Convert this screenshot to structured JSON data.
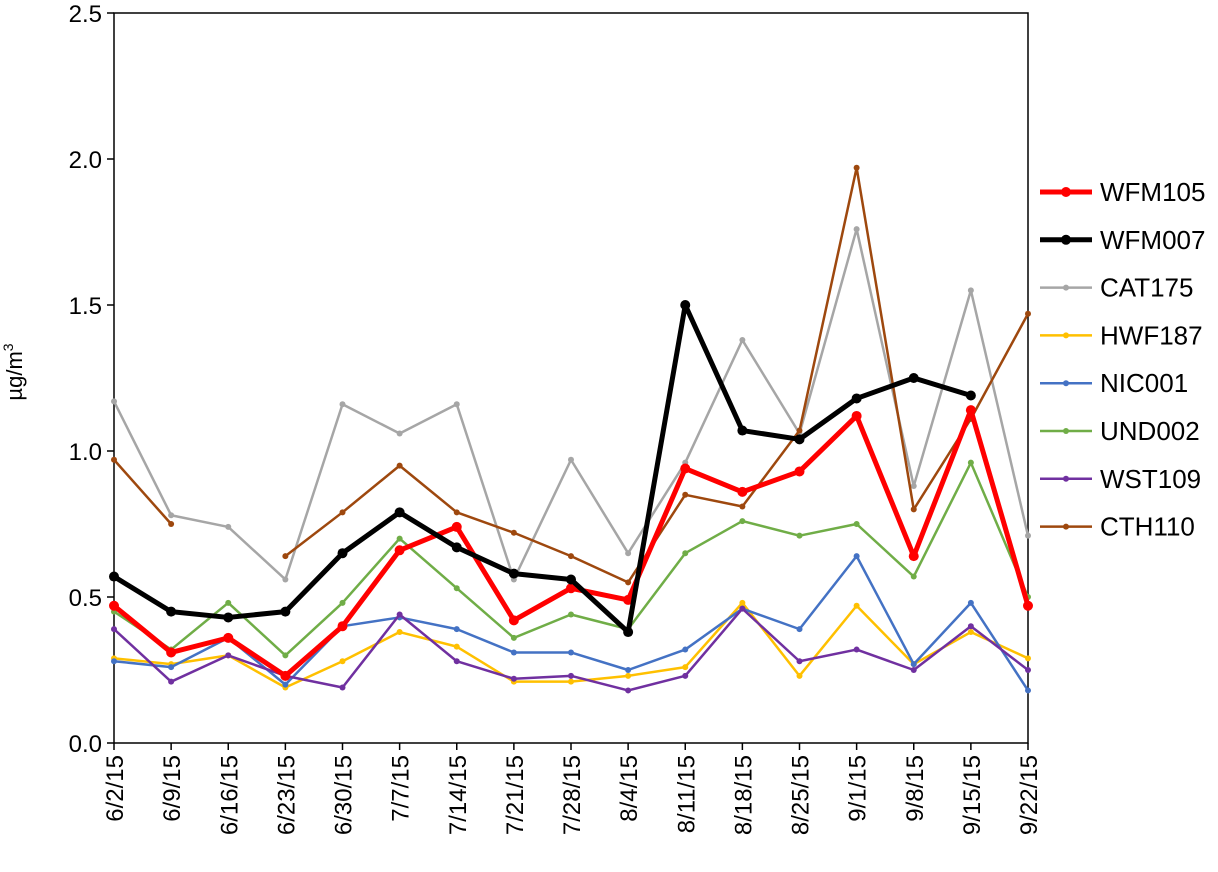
{
  "chart_data": {
    "type": "line",
    "title": "",
    "xlabel": "",
    "ylabel": "µg/m",
    "ylabel_superscript": "3",
    "ylim": [
      0,
      2.5
    ],
    "yticks": [
      0.0,
      0.5,
      1.0,
      1.5,
      2.0,
      2.5
    ],
    "ytick_labels": [
      "0.0",
      "0.5",
      "1.0",
      "1.5",
      "2.0",
      "2.5"
    ],
    "categories": [
      "6/2/15",
      "6/9/15",
      "6/16/15",
      "6/23/15",
      "6/30/15",
      "7/7/15",
      "7/14/15",
      "7/21/15",
      "7/28/15",
      "8/4/15",
      "8/11/15",
      "8/18/15",
      "8/25/15",
      "9/1/15",
      "9/8/15",
      "9/15/15",
      "9/22/15"
    ],
    "legend_position": "right",
    "grid": false,
    "series": [
      {
        "name": "WFM105",
        "color": "#ff0000",
        "width": 5,
        "marker": 5,
        "values": [
          0.47,
          0.31,
          0.36,
          0.23,
          0.4,
          0.66,
          0.74,
          0.42,
          0.53,
          0.49,
          0.94,
          0.86,
          0.93,
          1.12,
          0.64,
          1.14,
          0.47
        ]
      },
      {
        "name": "WFM007",
        "color": "#000000",
        "width": 5,
        "marker": 5,
        "values": [
          0.57,
          0.45,
          0.43,
          0.45,
          0.65,
          0.79,
          0.67,
          0.58,
          0.56,
          0.38,
          1.5,
          1.07,
          1.04,
          1.18,
          1.25,
          1.19,
          null
        ]
      },
      {
        "name": "CAT175",
        "color": "#a6a6a6",
        "width": 2.5,
        "marker": 3,
        "values": [
          1.17,
          0.78,
          0.74,
          0.56,
          1.16,
          1.06,
          1.16,
          0.56,
          0.97,
          0.65,
          0.96,
          1.38,
          1.06,
          1.76,
          0.88,
          1.55,
          0.71
        ]
      },
      {
        "name": "HWF187",
        "color": "#ffc000",
        "width": 2.5,
        "marker": 3,
        "values": [
          0.29,
          0.27,
          0.3,
          0.19,
          0.28,
          0.38,
          0.33,
          0.21,
          0.21,
          0.23,
          0.26,
          0.48,
          0.23,
          0.47,
          0.27,
          0.38,
          0.29
        ]
      },
      {
        "name": "NIC001",
        "color": "#4472c4",
        "width": 2.5,
        "marker": 3,
        "values": [
          0.28,
          0.26,
          0.36,
          0.2,
          0.4,
          0.43,
          0.39,
          0.31,
          0.31,
          0.25,
          0.32,
          0.46,
          0.39,
          0.64,
          0.27,
          0.48,
          0.18
        ]
      },
      {
        "name": "UND002",
        "color": "#70ad47",
        "width": 2.5,
        "marker": 3,
        "values": [
          0.45,
          0.32,
          0.48,
          0.3,
          0.48,
          0.7,
          0.53,
          0.36,
          0.44,
          0.39,
          0.65,
          0.76,
          0.71,
          0.75,
          0.57,
          0.96,
          0.5
        ]
      },
      {
        "name": "WST109",
        "color": "#7030a0",
        "width": 2.5,
        "marker": 3,
        "values": [
          0.39,
          0.21,
          0.3,
          0.23,
          0.19,
          0.44,
          0.28,
          0.22,
          0.23,
          0.18,
          0.23,
          0.46,
          0.28,
          0.32,
          0.25,
          0.4,
          0.25
        ]
      },
      {
        "name": "CTH110",
        "color": "#9e480e",
        "width": 2.5,
        "marker": 3,
        "values": [
          0.97,
          0.75,
          null,
          0.64,
          0.79,
          0.95,
          0.79,
          0.72,
          0.64,
          0.55,
          0.85,
          0.81,
          1.07,
          1.97,
          0.8,
          1.11,
          1.47
        ]
      }
    ]
  }
}
